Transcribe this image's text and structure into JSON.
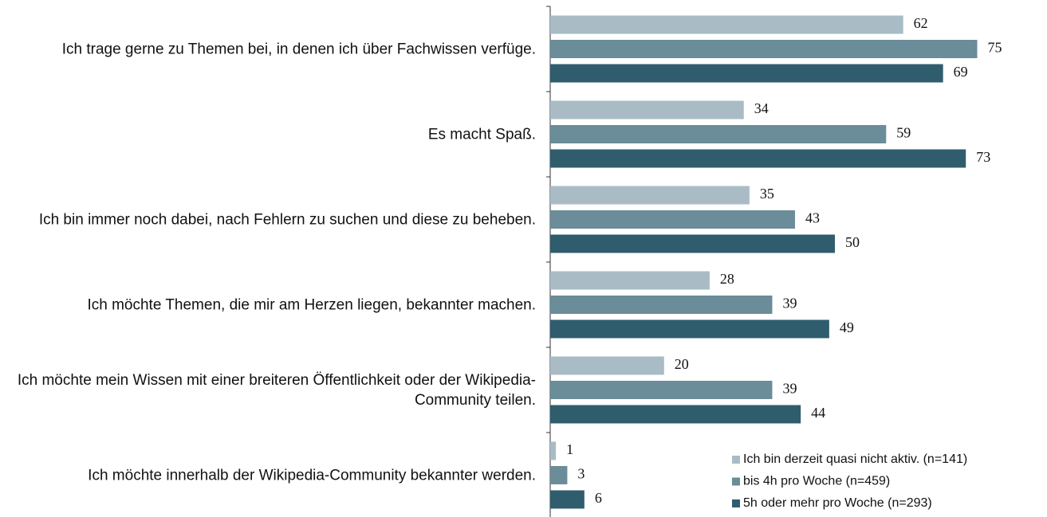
{
  "chart_data": {
    "type": "bar",
    "orientation": "horizontal",
    "categories": [
      "Ich trage gerne zu Themen bei, in denen ich über Fachwissen verfüge.",
      "Es macht Spaß.",
      "Ich bin immer noch dabei, nach Fehlern zu suchen und diese zu beheben.",
      "Ich möchte Themen, die mir am Herzen liegen, bekannter machen.",
      "Ich möchte mein Wissen mit einer breiteren Öffentlichkeit oder der Wikipedia-Community teilen.",
      "Ich möchte innerhalb der Wikipedia-Community bekannter werden."
    ],
    "series": [
      {
        "name": "Ich bin derzeit quasi nicht aktiv. (n=141)",
        "color": "#a9bcc6",
        "values": [
          62,
          34,
          35,
          28,
          20,
          1
        ]
      },
      {
        "name": "bis 4h pro Woche (n=459)",
        "color": "#6b8c99",
        "values": [
          75,
          59,
          43,
          39,
          39,
          3
        ]
      },
      {
        "name": "5h oder mehr pro Woche (n=293)",
        "color": "#2f5d6e",
        "values": [
          69,
          73,
          50,
          49,
          44,
          6
        ]
      }
    ],
    "xlim": [
      0,
      80
    ],
    "legend": "lower right"
  }
}
